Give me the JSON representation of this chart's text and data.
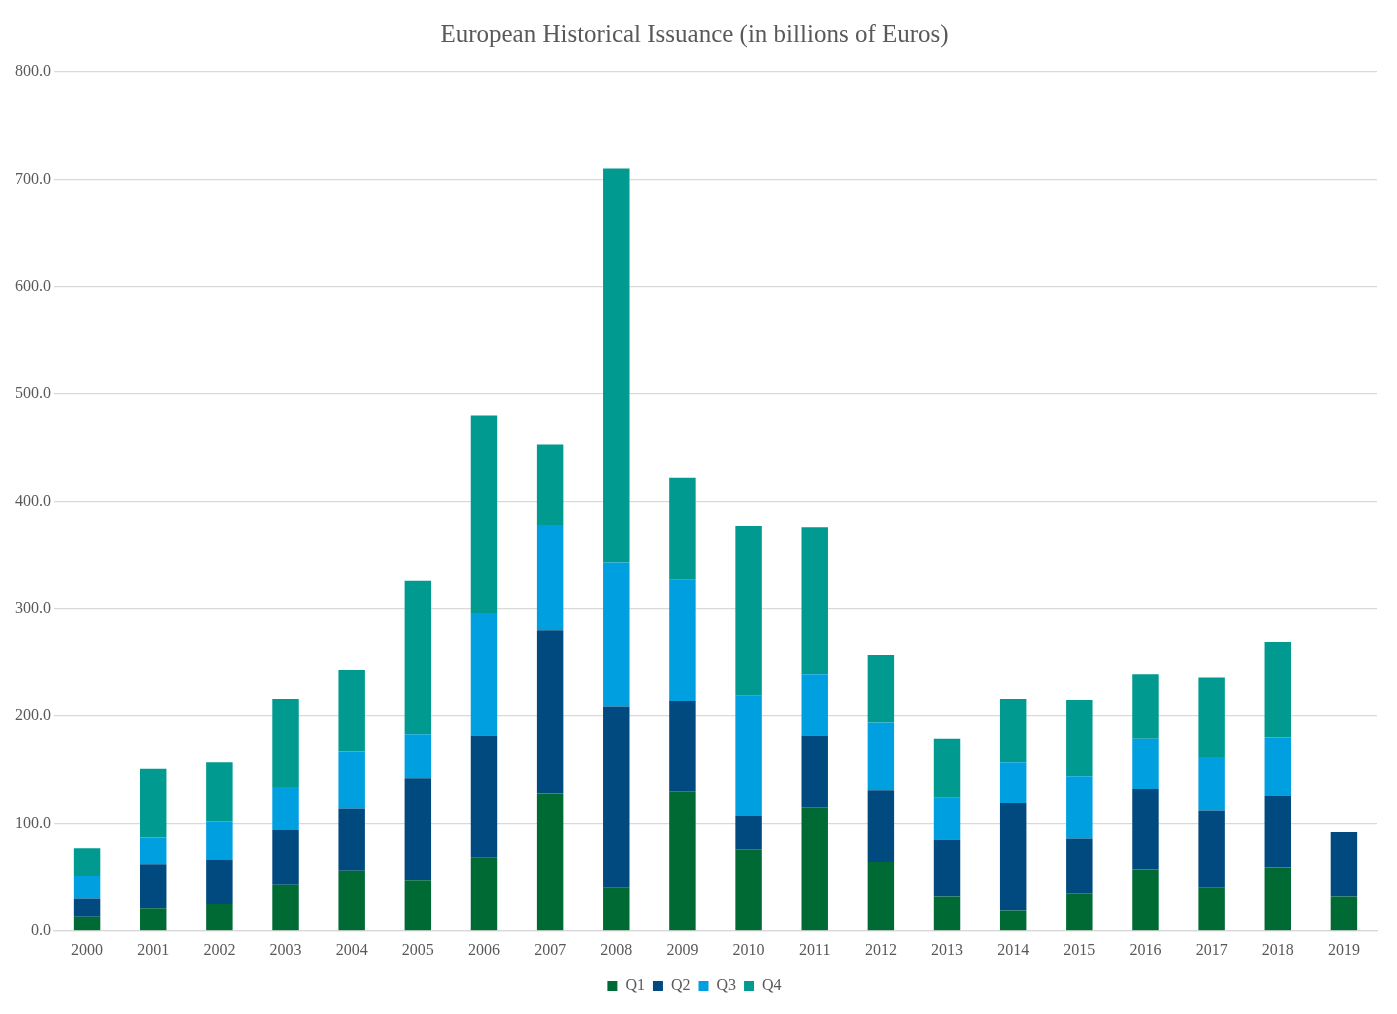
{
  "chart_data": {
    "type": "bar",
    "title": "European Historical Issuance (in billions of Euros)",
    "stacked": true,
    "categories": [
      "2000",
      "2001",
      "2002",
      "2003",
      "2004",
      "2005",
      "2006",
      "2007",
      "2008",
      "2009",
      "2010",
      "2011",
      "2012",
      "2013",
      "2014",
      "2015",
      "2016",
      "2017",
      "2018",
      "2019"
    ],
    "series": [
      {
        "name": "Q1",
        "color": "#006a35",
        "values": [
          13,
          21,
          25,
          43,
          56,
          47,
          68,
          128,
          40,
          130,
          76,
          115,
          64,
          32,
          19,
          35,
          57,
          40,
          59,
          32
        ]
      },
      {
        "name": "Q2",
        "color": "#004a7f",
        "values": [
          17,
          41,
          41,
          51,
          58,
          95,
          114,
          152,
          169,
          84,
          31,
          67,
          67,
          53,
          100,
          51,
          75,
          72,
          67,
          60
        ]
      },
      {
        "name": "Q3",
        "color": "#009fdf",
        "values": [
          21,
          25,
          36,
          40,
          53,
          41,
          114,
          98,
          134,
          113,
          112,
          57,
          63,
          39,
          38,
          58,
          47,
          50,
          54,
          null
        ]
      },
      {
        "name": "Q4",
        "color": "#009a90",
        "values": [
          26,
          64,
          55,
          82,
          76,
          143,
          184,
          75,
          367,
          95,
          158,
          137,
          63,
          55,
          59,
          71,
          60,
          74,
          89,
          null
        ]
      }
    ],
    "ylim": [
      0,
      800
    ],
    "yticks": [
      {
        "value": 0,
        "label": "0.0"
      },
      {
        "value": 100,
        "label": "100.0"
      },
      {
        "value": 200,
        "label": "200.0"
      },
      {
        "value": 300,
        "label": "300.0"
      },
      {
        "value": 400,
        "label": "400.0"
      },
      {
        "value": 500,
        "label": "500.0"
      },
      {
        "value": 600,
        "label": "600.0"
      },
      {
        "value": 700,
        "label": "700.0"
      },
      {
        "value": 800,
        "label": "800.0"
      }
    ],
    "grid": "y",
    "legend": "bottom"
  }
}
